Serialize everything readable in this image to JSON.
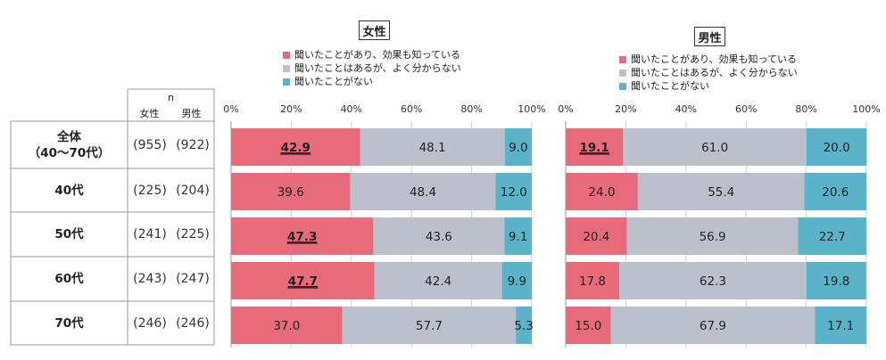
{
  "colors": {
    "known_effect": "#e76b7a",
    "heard_unsure": "#bcc0cc",
    "never_heard": "#5ab3c8",
    "grid": "#cfcfcf",
    "table_border": "#9a9a9a"
  },
  "table": {
    "n_header": "n",
    "col_female": "女性",
    "col_male": "男性",
    "rows": [
      {
        "group": "全体\n（40～70代）",
        "female_n": "(955)",
        "male_n": "(922)"
      },
      {
        "group": "40代",
        "female_n": "(225)",
        "male_n": "(204)"
      },
      {
        "group": "50代",
        "female_n": "(241)",
        "male_n": "(225)"
      },
      {
        "group": "60代",
        "female_n": "(243)",
        "male_n": "(247)"
      },
      {
        "group": "70代",
        "female_n": "(246)",
        "male_n": "(246)"
      }
    ]
  },
  "chart_data": [
    {
      "type": "bar",
      "orientation": "horizontal-stacked-100",
      "title": "女性",
      "categories": [
        "全体（40～70代）",
        "40代",
        "50代",
        "60代",
        "70代"
      ],
      "x_ticks": [
        "0%",
        "20%",
        "40%",
        "60%",
        "80%",
        "100%"
      ],
      "xlim": [
        0,
        100
      ],
      "legend": "top",
      "series": [
        {
          "name": "聞いたことがあり、効果も知っている",
          "color_key": "known_effect",
          "values": [
            42.9,
            39.6,
            47.3,
            47.7,
            37.0
          ],
          "labels": [
            "42.9",
            "39.6",
            "47.3",
            "47.7",
            "37.0"
          ],
          "emphasized": [
            true,
            false,
            true,
            true,
            false
          ]
        },
        {
          "name": "聞いたことはあるが、よく分からない",
          "color_key": "heard_unsure",
          "values": [
            48.1,
            48.4,
            43.6,
            42.4,
            57.7
          ],
          "labels": [
            "48.1",
            "48.4",
            "43.6",
            "42.4",
            "57.7"
          ]
        },
        {
          "name": "聞いたことがない",
          "color_key": "never_heard",
          "values": [
            9.0,
            12.0,
            9.1,
            9.9,
            5.3
          ],
          "labels": [
            "9.0",
            "12.0",
            "9.1",
            "9.9",
            "5.3"
          ]
        }
      ]
    },
    {
      "type": "bar",
      "orientation": "horizontal-stacked-100",
      "title": "男性",
      "categories": [
        "全体（40～70代）",
        "40代",
        "50代",
        "60代",
        "70代"
      ],
      "x_ticks": [
        "0%",
        "20%",
        "40%",
        "60%",
        "80%",
        "100%"
      ],
      "xlim": [
        0,
        100
      ],
      "legend": "top",
      "series": [
        {
          "name": "聞いたことがあり、効果も知っている",
          "color_key": "known_effect",
          "values": [
            19.1,
            24.0,
            20.4,
            17.8,
            15.0
          ],
          "labels": [
            "19.1",
            "24.0",
            "20.4",
            "17.8",
            "15.0"
          ],
          "emphasized": [
            true,
            false,
            false,
            false,
            false
          ]
        },
        {
          "name": "聞いたことはあるが、よく分からない",
          "color_key": "heard_unsure",
          "values": [
            61.0,
            55.4,
            56.9,
            62.3,
            67.9
          ],
          "labels": [
            "61.0",
            "55.4",
            "56.9",
            "62.3",
            "67.9"
          ]
        },
        {
          "name": "聞いたことがない",
          "color_key": "never_heard",
          "values": [
            20.0,
            20.6,
            22.7,
            19.8,
            17.1
          ],
          "labels": [
            "20.0",
            "20.6",
            "22.7",
            "19.8",
            "17.1"
          ]
        }
      ]
    }
  ]
}
